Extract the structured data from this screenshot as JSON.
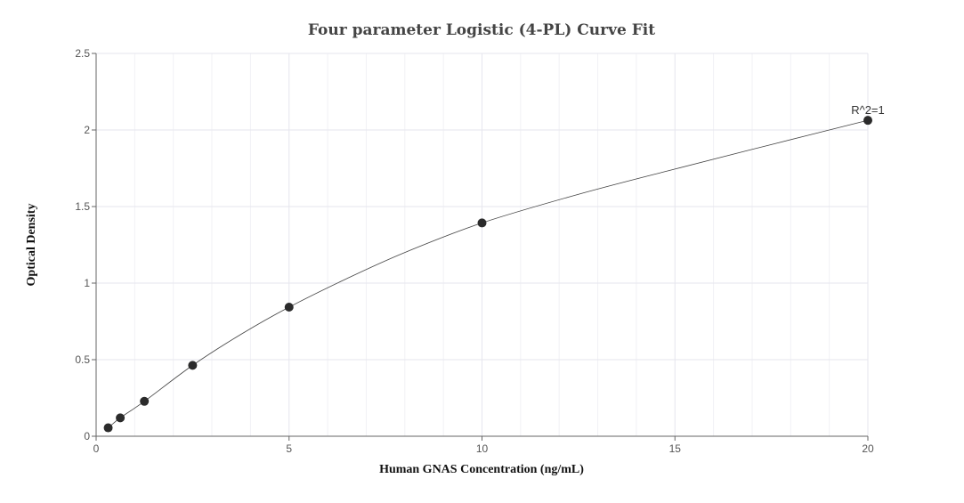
{
  "chart_data": {
    "type": "scatter",
    "title": "Four parameter Logistic (4-PL) Curve Fit",
    "xlabel": "Human GNAS Concentration (ng/mL)",
    "ylabel": "Optical Density",
    "xlim": [
      0,
      20
    ],
    "ylim": [
      0,
      2.5
    ],
    "x_ticks": [
      0,
      5,
      10,
      15,
      20
    ],
    "y_ticks": [
      0,
      0.5,
      1,
      1.5,
      2,
      2.5
    ],
    "x_tick_labels": [
      "0",
      "5",
      "10",
      "15",
      "20"
    ],
    "y_tick_labels": [
      "0",
      "0.5",
      "1",
      "1.5",
      "2",
      "2.5"
    ],
    "grid": true,
    "series": [
      {
        "x": [
          0.3125,
          0.625,
          1.25,
          2.5,
          5,
          10,
          20
        ],
        "y": [
          0.055,
          0.12,
          0.228,
          0.463,
          0.843,
          1.393,
          2.063
        ]
      }
    ],
    "fit_curve": {
      "model": "4-PL",
      "points": [
        [
          0.3125,
          0.055
        ],
        [
          0.625,
          0.12
        ],
        [
          1.25,
          0.228
        ],
        [
          2.5,
          0.463
        ],
        [
          3.75,
          0.665
        ],
        [
          5,
          0.843
        ],
        [
          6.5,
          1.03
        ],
        [
          8,
          1.2
        ],
        [
          10,
          1.393
        ],
        [
          12.5,
          1.58
        ],
        [
          15,
          1.745
        ],
        [
          17.5,
          1.905
        ],
        [
          20,
          2.063
        ]
      ]
    },
    "annotations": [
      {
        "text": "R^2=1",
        "x": 20,
        "y": 2.063
      }
    ],
    "colors": {
      "points": "#2b2b2b",
      "curve": "#444444",
      "grid": "#e6e6ee",
      "axis": "#666666"
    }
  }
}
